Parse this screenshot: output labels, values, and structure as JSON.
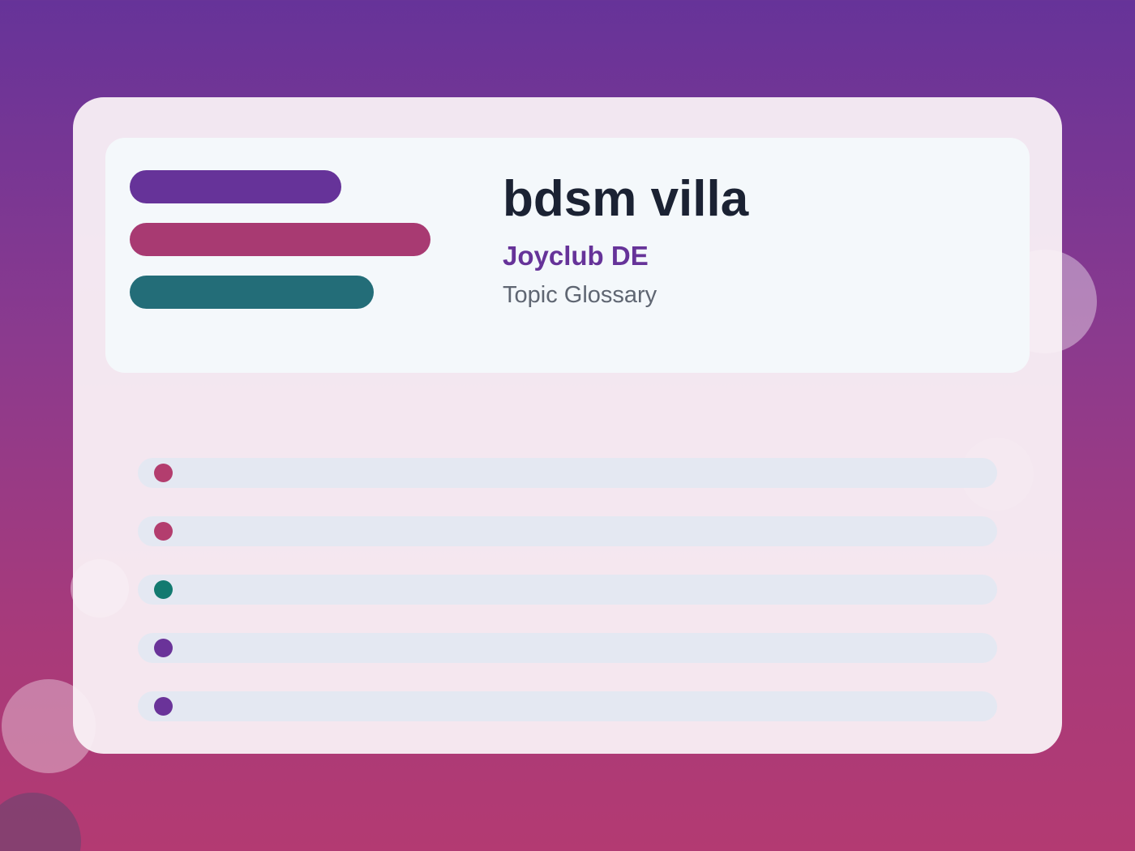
{
  "header": {
    "title": "bdsm villa",
    "subtitle": "Joyclub DE",
    "caption": "Topic Glossary"
  },
  "colors": {
    "purple": "#663399",
    "magenta": "#a83a72",
    "teal": "#236d78",
    "dot_magenta": "#b33d6e",
    "dot_teal": "#137a70",
    "dot_purple": "#6a3399"
  },
  "decor_bars": [
    {
      "name": "decor-bar-purple",
      "color": "#663399"
    },
    {
      "name": "decor-bar-magenta",
      "color": "#a83a72"
    },
    {
      "name": "decor-bar-teal",
      "color": "#236d78"
    }
  ],
  "list_rows": [
    {
      "dot_color": "#b33d6e"
    },
    {
      "dot_color": "#b33d6e"
    },
    {
      "dot_color": "#137a70"
    },
    {
      "dot_color": "#6a3399"
    },
    {
      "dot_color": "#6a3399"
    }
  ]
}
